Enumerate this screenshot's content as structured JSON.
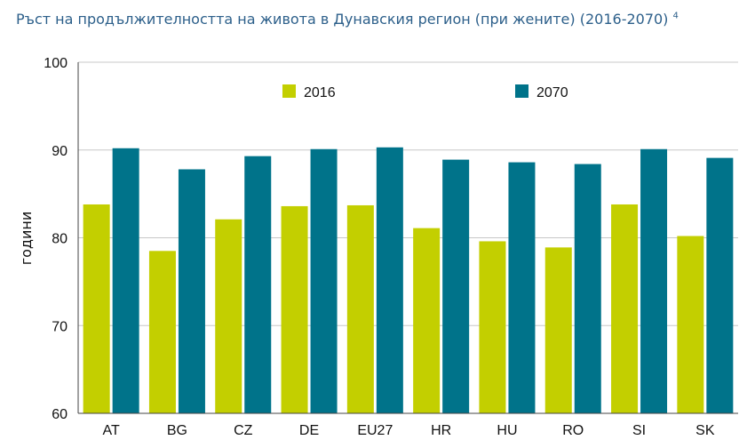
{
  "chart_data": {
    "type": "bar",
    "title": "Ръст на продължителността на живота в Дунавския регион (при жените) (2016-2070)",
    "title_note": "4",
    "ylabel": "години",
    "xlabel": "",
    "ylim": [
      60,
      100
    ],
    "yticks": [
      60,
      70,
      80,
      90,
      100
    ],
    "grid": true,
    "legend_position": "top-center",
    "categories": [
      "AT",
      "BG",
      "CZ",
      "DE",
      "EU27",
      "HR",
      "HU",
      "RO",
      "SI",
      "SK"
    ],
    "series": [
      {
        "name": "2016",
        "color": "#c3cf00",
        "values": [
          83.8,
          78.5,
          82.1,
          83.6,
          83.7,
          81.1,
          79.6,
          78.9,
          83.8,
          80.2
        ]
      },
      {
        "name": "2070",
        "color": "#00738a",
        "values": [
          90.2,
          87.8,
          89.3,
          90.1,
          90.3,
          88.9,
          88.6,
          88.4,
          90.1,
          89.1
        ]
      }
    ]
  }
}
